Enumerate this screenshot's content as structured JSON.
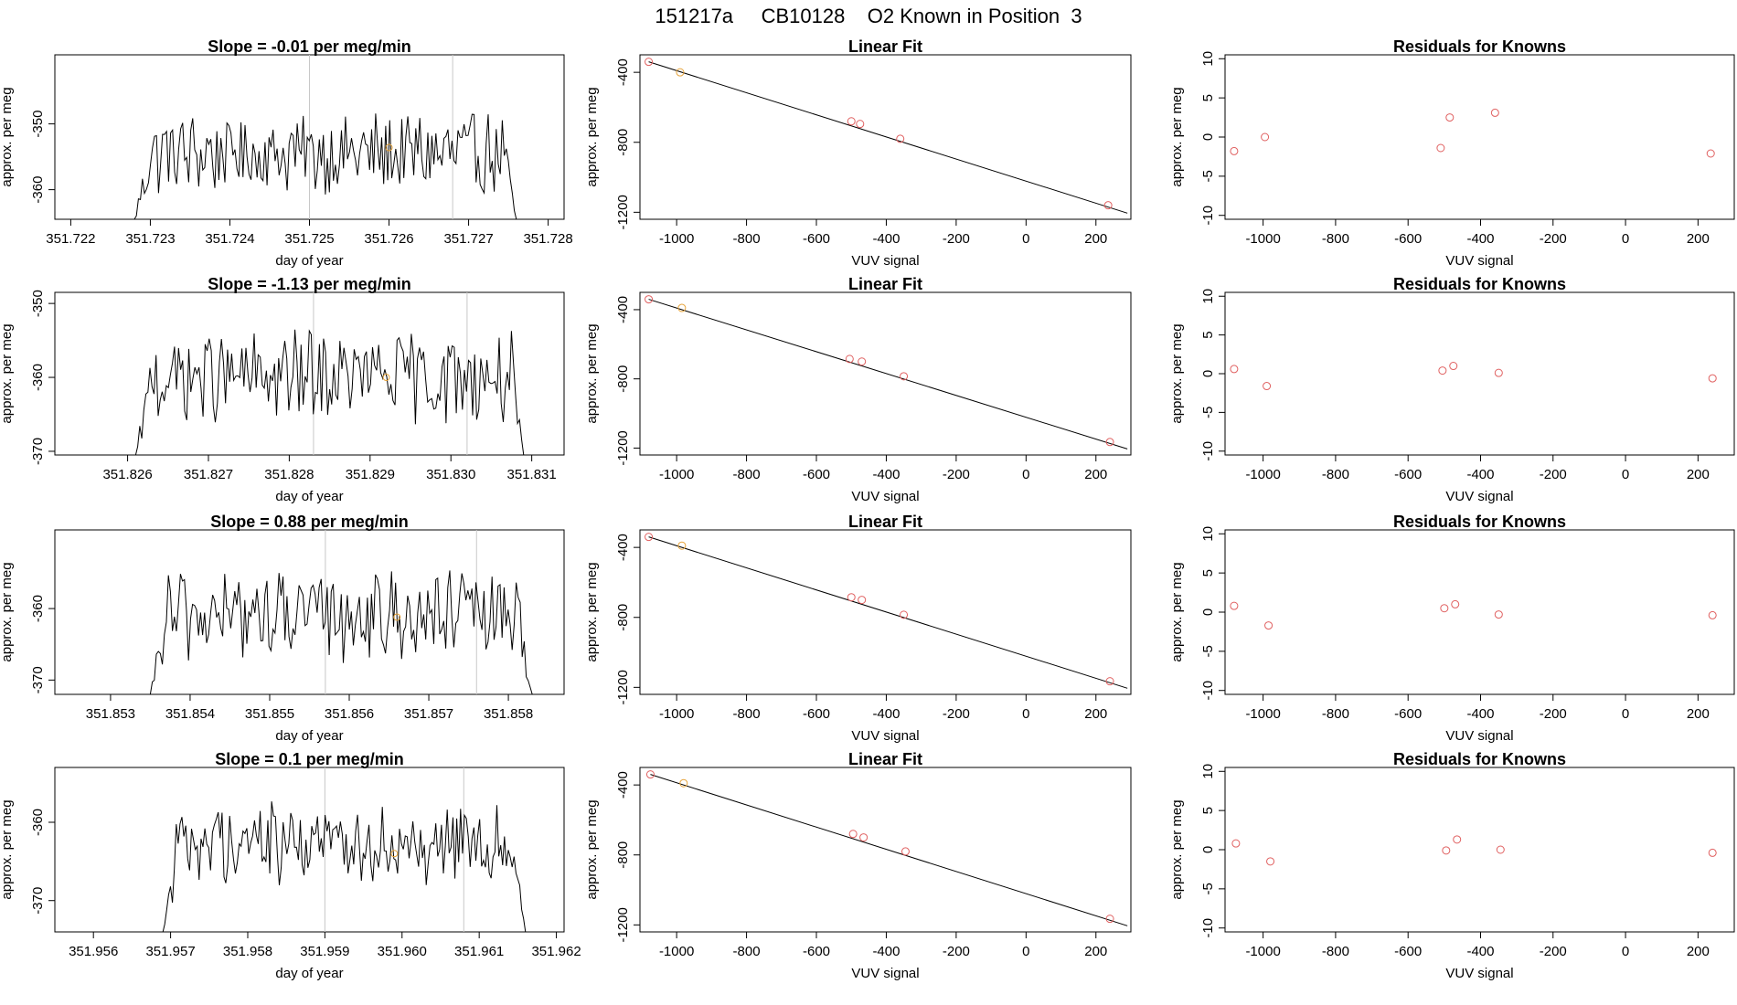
{
  "page_title": "151217a     CB10128    O2 Known in Position  3",
  "colors": {
    "known_point": "#e06060",
    "sample_point": "#e6a33a",
    "trace": "#000000",
    "marker_line": "#c8c8c8"
  },
  "chart_data": [
    {
      "type": "line",
      "row": 1,
      "title": "Slope =  -0.01  per meg/min",
      "xlabel": "day of year",
      "ylabel": "approx. per meg",
      "xlim": [
        351.7218,
        351.7282
      ],
      "ylim": [
        -364.5,
        -339.5
      ],
      "xticks": [
        "351.722",
        "351.723",
        "351.724",
        "351.725",
        "351.726",
        "351.727",
        "351.728"
      ],
      "yticks": [
        "-350",
        "-360"
      ],
      "start": 351.7228,
      "end": 351.7276,
      "level": -354.5,
      "amplitude": 5.5,
      "vlines": [
        351.725,
        351.7268
      ],
      "sample_point": {
        "x": 351.726,
        "y": -353.6
      }
    },
    {
      "type": "scatter",
      "row": 1,
      "title": "Linear Fit",
      "xlabel": "VUV signal",
      "ylabel": "approx. per meg",
      "xlim": [
        -1105,
        300
      ],
      "ylim": [
        -1240,
        -300
      ],
      "xticks": [
        "-1000",
        "-800",
        "-600",
        "-400",
        "-200",
        "0",
        "200"
      ],
      "yticks": [
        "-400",
        "-800",
        "-1200"
      ],
      "known": [
        {
          "x": -1080,
          "y": -340
        },
        {
          "x": -500,
          "y": -680
        },
        {
          "x": -475,
          "y": -695
        },
        {
          "x": -360,
          "y": -780
        },
        {
          "x": 235,
          "y": -1160
        }
      ],
      "sample": [
        {
          "x": -990,
          "y": -400
        }
      ],
      "fit": {
        "x": [
          -1080,
          290
        ],
        "y": [
          -340,
          -1205
        ]
      }
    },
    {
      "type": "scatter",
      "row": 1,
      "title": "Residuals for Knowns",
      "xlabel": "VUV signal",
      "ylabel": "approx. per meg",
      "xlim": [
        -1105,
        300
      ],
      "ylim": [
        -10.5,
        10.5
      ],
      "xticks": [
        "-1000",
        "-800",
        "-600",
        "-400",
        "-200",
        "0",
        "200"
      ],
      "yticks": [
        "10",
        "5",
        "0",
        "-5",
        "-10"
      ],
      "known": [
        {
          "x": -1080,
          "y": -1.8
        },
        {
          "x": -995,
          "y": 0
        },
        {
          "x": -510,
          "y": -1.4
        },
        {
          "x": -485,
          "y": 2.5
        },
        {
          "x": -360,
          "y": 3.1
        },
        {
          "x": 235,
          "y": -2.1
        }
      ]
    },
    {
      "type": "line",
      "row": 2,
      "title": "Slope =  -1.13  per meg/min",
      "xlabel": "day of year",
      "ylabel": "approx. per meg",
      "xlim": [
        351.8251,
        351.8314
      ],
      "ylim": [
        -370.5,
        -348.5
      ],
      "xticks": [
        "351.826",
        "351.827",
        "351.828",
        "351.829",
        "351.830",
        "351.831"
      ],
      "yticks": [
        "-350",
        "-360",
        "-370"
      ],
      "start": 351.8261,
      "end": 351.8309,
      "level": -360,
      "amplitude": 5.5,
      "vlines": [
        351.8283,
        351.8302
      ],
      "sample_point": {
        "x": 351.8292,
        "y": -360
      }
    },
    {
      "type": "scatter",
      "row": 2,
      "title": "Linear Fit",
      "xlabel": "VUV signal",
      "ylabel": "approx. per meg",
      "xlim": [
        -1105,
        300
      ],
      "ylim": [
        -1240,
        -300
      ],
      "xticks": [
        "-1000",
        "-800",
        "-600",
        "-400",
        "-200",
        "0",
        "200"
      ],
      "yticks": [
        "-400",
        "-800",
        "-1200"
      ],
      "known": [
        {
          "x": -1080,
          "y": -340
        },
        {
          "x": -505,
          "y": -685
        },
        {
          "x": -470,
          "y": -700
        },
        {
          "x": -350,
          "y": -785
        },
        {
          "x": 240,
          "y": -1165
        }
      ],
      "sample": [
        {
          "x": -985,
          "y": -390
        }
      ],
      "fit": {
        "x": [
          -1080,
          290
        ],
        "y": [
          -340,
          -1205
        ]
      }
    },
    {
      "type": "scatter",
      "row": 2,
      "title": "Residuals for Knowns",
      "xlabel": "VUV signal",
      "ylabel": "approx. per meg",
      "xlim": [
        -1105,
        300
      ],
      "ylim": [
        -10.5,
        10.5
      ],
      "xticks": [
        "-1000",
        "-800",
        "-600",
        "-400",
        "-200",
        "0",
        "200"
      ],
      "yticks": [
        "10",
        "5",
        "0",
        "-5",
        "-10"
      ],
      "known": [
        {
          "x": -1080,
          "y": 0.6
        },
        {
          "x": -990,
          "y": -1.6
        },
        {
          "x": -505,
          "y": 0.4
        },
        {
          "x": -475,
          "y": 1.0
        },
        {
          "x": -350,
          "y": 0.1
        },
        {
          "x": 240,
          "y": -0.6
        }
      ]
    },
    {
      "type": "line",
      "row": 3,
      "title": "Slope =  0.88  per meg/min",
      "xlabel": "day of year",
      "ylabel": "approx. per meg",
      "xlim": [
        351.8523,
        351.8587
      ],
      "ylim": [
        -372,
        -349
      ],
      "xticks": [
        "351.853",
        "351.854",
        "351.855",
        "351.856",
        "351.857",
        "351.858"
      ],
      "yticks": [
        "-360",
        "-370"
      ],
      "start": 351.8535,
      "end": 351.8583,
      "level": -361,
      "amplitude": 5.5,
      "vlines": [
        351.8557,
        351.8576
      ],
      "sample_point": {
        "x": 351.8566,
        "y": -361.2
      }
    },
    {
      "type": "scatter",
      "row": 3,
      "title": "Linear Fit",
      "xlabel": "VUV signal",
      "ylabel": "approx. per meg",
      "xlim": [
        -1105,
        300
      ],
      "ylim": [
        -1240,
        -300
      ],
      "xticks": [
        "-1000",
        "-800",
        "-600",
        "-400",
        "-200",
        "0",
        "200"
      ],
      "yticks": [
        "-400",
        "-800",
        "-1200"
      ],
      "known": [
        {
          "x": -1080,
          "y": -340
        },
        {
          "x": -500,
          "y": -685
        },
        {
          "x": -470,
          "y": -700
        },
        {
          "x": -350,
          "y": -785
        },
        {
          "x": 240,
          "y": -1165
        }
      ],
      "sample": [
        {
          "x": -985,
          "y": -390
        }
      ],
      "fit": {
        "x": [
          -1080,
          290
        ],
        "y": [
          -340,
          -1205
        ]
      }
    },
    {
      "type": "scatter",
      "row": 3,
      "title": "Residuals for Knowns",
      "xlabel": "VUV signal",
      "ylabel": "approx. per meg",
      "xlim": [
        -1105,
        300
      ],
      "ylim": [
        -10.5,
        10.5
      ],
      "xticks": [
        "-1000",
        "-800",
        "-600",
        "-400",
        "-200",
        "0",
        "200"
      ],
      "yticks": [
        "10",
        "5",
        "0",
        "-5",
        "-10"
      ],
      "known": [
        {
          "x": -1080,
          "y": 0.8
        },
        {
          "x": -985,
          "y": -1.7
        },
        {
          "x": -500,
          "y": 0.5
        },
        {
          "x": -470,
          "y": 1.0
        },
        {
          "x": -350,
          "y": -0.3
        },
        {
          "x": 240,
          "y": -0.4
        }
      ]
    },
    {
      "type": "line",
      "row": 4,
      "title": "Slope =  0.1  per meg/min",
      "xlabel": "day of year",
      "ylabel": "approx. per meg",
      "xlim": [
        351.9555,
        351.9621
      ],
      "ylim": [
        -374,
        -353
      ],
      "xticks": [
        "351.956",
        "351.957",
        "351.958",
        "351.959",
        "351.960",
        "351.961",
        "351.962"
      ],
      "yticks": [
        "-360",
        "-370"
      ],
      "start": 351.9569,
      "end": 351.9616,
      "level": -362.5,
      "amplitude": 4.5,
      "vlines": [
        351.959,
        351.9608
      ],
      "sample_point": {
        "x": 351.9599,
        "y": -364
      }
    },
    {
      "type": "scatter",
      "row": 4,
      "title": "Linear Fit",
      "xlabel": "VUV signal",
      "ylabel": "approx. per meg",
      "xlim": [
        -1105,
        300
      ],
      "ylim": [
        -1240,
        -300
      ],
      "xticks": [
        "-1000",
        "-800",
        "-600",
        "-400",
        "-200",
        "0",
        "200"
      ],
      "yticks": [
        "-400",
        "-800",
        "-1200"
      ],
      "known": [
        {
          "x": -1075,
          "y": -340
        },
        {
          "x": -495,
          "y": -680
        },
        {
          "x": -465,
          "y": -700
        },
        {
          "x": -345,
          "y": -780
        },
        {
          "x": 240,
          "y": -1165
        }
      ],
      "sample": [
        {
          "x": -980,
          "y": -390
        }
      ],
      "fit": {
        "x": [
          -1075,
          290
        ],
        "y": [
          -340,
          -1205
        ]
      }
    },
    {
      "type": "scatter",
      "row": 4,
      "title": "Residuals for Knowns",
      "xlabel": "VUV signal",
      "ylabel": "approx. per meg",
      "xlim": [
        -1105,
        300
      ],
      "ylim": [
        -10.5,
        10.5
      ],
      "xticks": [
        "-1000",
        "-800",
        "-600",
        "-400",
        "-200",
        "0",
        "200"
      ],
      "yticks": [
        "10",
        "5",
        "0",
        "-5",
        "-10"
      ],
      "known": [
        {
          "x": -1075,
          "y": 0.8
        },
        {
          "x": -980,
          "y": -1.5
        },
        {
          "x": -495,
          "y": -0.1
        },
        {
          "x": -465,
          "y": 1.3
        },
        {
          "x": -345,
          "y": 0
        },
        {
          "x": 240,
          "y": -0.4
        }
      ]
    }
  ]
}
